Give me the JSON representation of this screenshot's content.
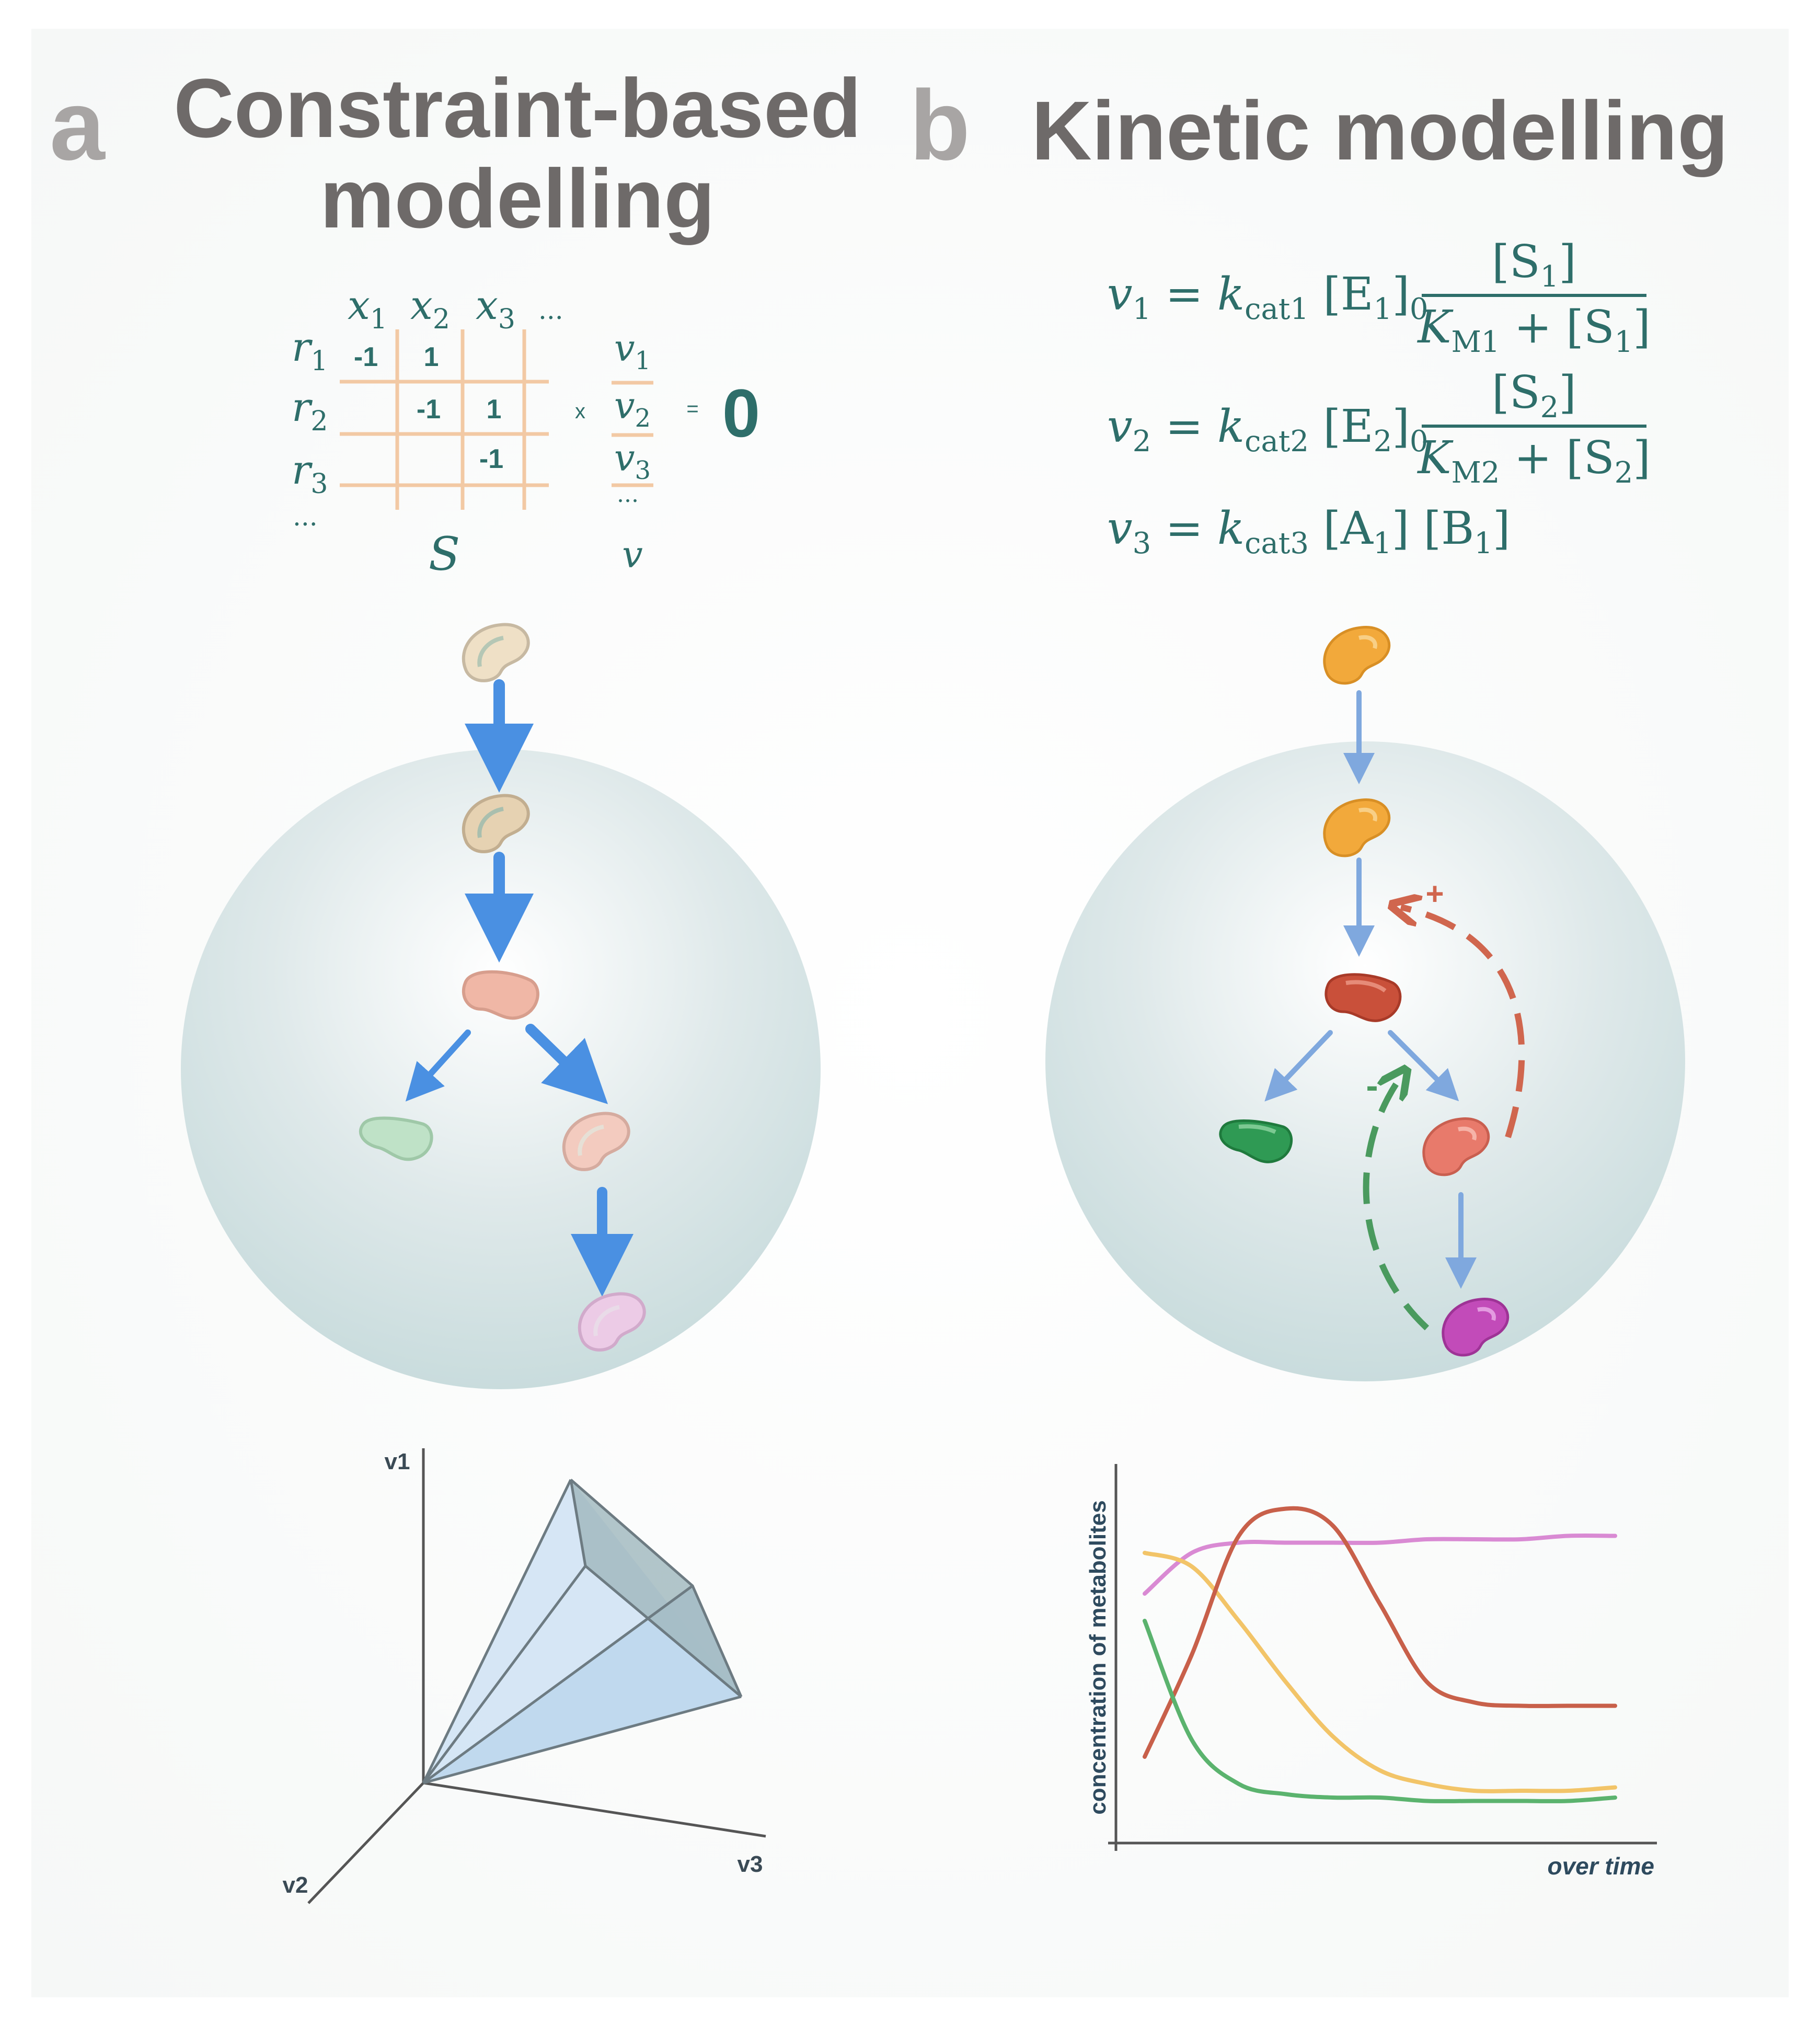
{
  "panel_a": {
    "letter": "a",
    "title_line1": "Constraint-based",
    "title_line2": "modelling",
    "matrix": {
      "col_headers": [
        "x",
        "x",
        "x",
        "..."
      ],
      "col_subs": [
        "1",
        "2",
        "3"
      ],
      "row_headers": [
        "r",
        "r",
        "r",
        "..."
      ],
      "row_subs": [
        "1",
        "2",
        "3"
      ],
      "cells": [
        {
          "row": 1,
          "col": 1,
          "text": "-1"
        },
        {
          "row": 1,
          "col": 2,
          "text": "1"
        },
        {
          "row": 2,
          "col": 2,
          "text": "-1"
        },
        {
          "row": 2,
          "col": 3,
          "text": "1"
        },
        {
          "row": 3,
          "col": 3,
          "text": "-1"
        }
      ],
      "times": "x",
      "vector": [
        "v",
        "v",
        "v",
        "..."
      ],
      "vector_subs": [
        "1",
        "2",
        "3"
      ],
      "equals": "=",
      "zero": "0",
      "matrix_label": "S",
      "vector_label": "v"
    },
    "cone_axes": {
      "v1": "v1",
      "v2": "v2",
      "v3": "v3"
    }
  },
  "panel_b": {
    "letter": "b",
    "title": "Kinetic modelling",
    "equations": [
      {
        "lhs": "v",
        "lhs_sub": "1",
        "k": "k",
        "k_sub": "cat1",
        "enz": "[E",
        "enz_sub": "1",
        "enz_close": "]",
        "zero_sub": "0",
        "num": "[S",
        "num_sub": "1",
        "num_close": "]",
        "den_K": "K",
        "den_K_sub": "M1",
        "den_plus": " + [S",
        "den_sub": "1",
        "den_close": "]"
      },
      {
        "lhs": "v",
        "lhs_sub": "2",
        "k": "k",
        "k_sub": "cat2",
        "enz": "[E",
        "enz_sub": "2",
        "enz_close": "]",
        "zero_sub": "0",
        "num": "[S",
        "num_sub": "2",
        "num_close": "]",
        "den_K": "K",
        "den_K_sub": "M2",
        "den_plus": " + [S",
        "den_sub": "2",
        "den_close": "]"
      }
    ],
    "equation3": {
      "lhs": "v",
      "lhs_sub": "3",
      "k": "k",
      "k_sub": "cat3",
      "a": "[A",
      "a_sub": "1",
      "a_close": "] ",
      "b": "[B",
      "b_sub": "1",
      "b_close": "]"
    },
    "feedback": {
      "positive": "+",
      "negative": "-"
    },
    "plot": {
      "ylabel": "concentration of metabolites",
      "xlabel": "over time"
    }
  },
  "colors": {
    "title_gray": "#6e6a69",
    "letter_gray": "#a8a5a4",
    "teal": "#2e6e6a",
    "grid_orange": "#f2c9a4",
    "arrow_blue": "#4a90e2",
    "arrow_blue_light": "#7fa8de",
    "orange": "#f2a93b",
    "red": "#c9503a",
    "green": "#2f9a54",
    "salmon": "#e87a6b",
    "magenta": "#c24bb9",
    "pink_line": "#d98ad3",
    "yellow_line": "#f2c468",
    "red_line": "#c8604a",
    "green_line": "#5bb36e",
    "cone_fill": "#cfe2f3",
    "cone_edge": "#6d7b82",
    "cone_dark": "#9fb6bd"
  },
  "icons": [
    "metabolite-icon",
    "arrow-icon",
    "dashed-feedback-arrow-icon"
  ],
  "chart_data": {
    "type": "line",
    "title": "",
    "xlabel": "over time",
    "ylabel": "concentration of metabolites",
    "x": [
      0,
      1,
      2,
      3,
      4,
      5,
      6,
      7,
      8,
      9,
      10
    ],
    "ylim": [
      0,
      1
    ],
    "series": [
      {
        "color": "#d98ad3",
        "values": [
          0.68,
          0.8,
          0.83,
          0.83,
          0.83,
          0.83,
          0.84,
          0.84,
          0.84,
          0.85,
          0.85
        ]
      },
      {
        "color": "#f2c468",
        "values": [
          0.8,
          0.76,
          0.6,
          0.42,
          0.26,
          0.16,
          0.12,
          0.1,
          0.1,
          0.1,
          0.11
        ]
      },
      {
        "color": "#c8604a",
        "values": [
          0.2,
          0.5,
          0.85,
          0.93,
          0.88,
          0.65,
          0.42,
          0.36,
          0.35,
          0.35,
          0.35
        ]
      },
      {
        "color": "#5bb36e",
        "values": [
          0.6,
          0.25,
          0.12,
          0.09,
          0.08,
          0.08,
          0.07,
          0.07,
          0.07,
          0.07,
          0.08
        ]
      }
    ]
  }
}
